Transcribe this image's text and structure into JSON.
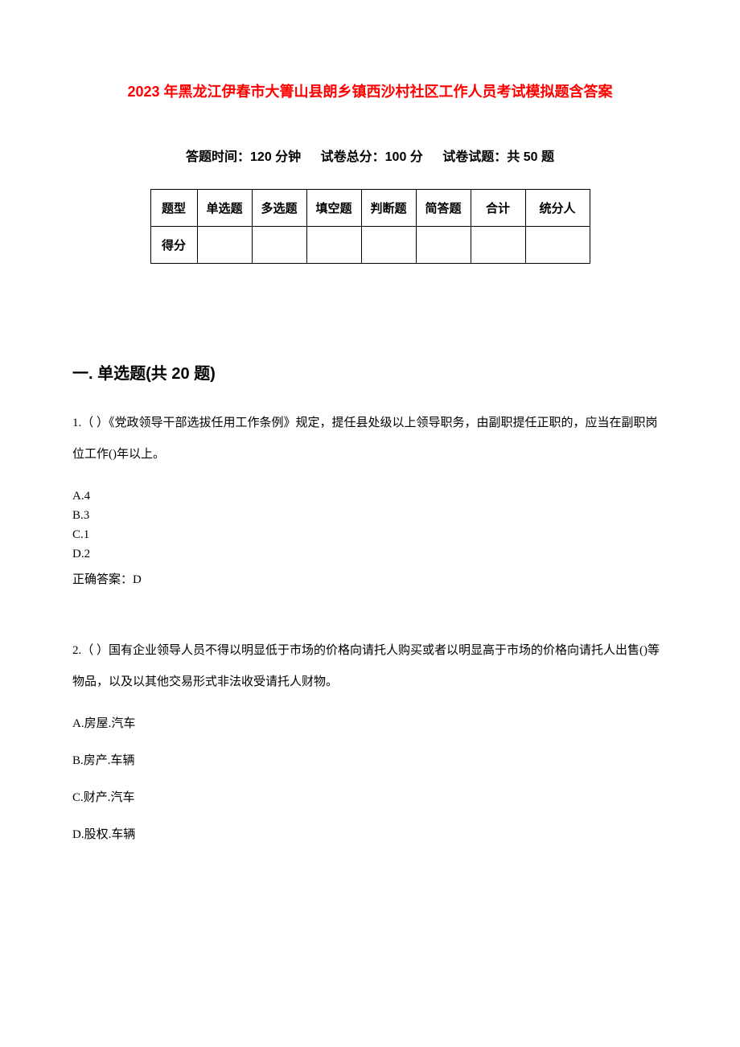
{
  "title": "2023 年黑龙江伊春市大箐山县朗乡镇西沙村社区工作人员考试模拟题含答案",
  "exam_info": {
    "time_label": "答题时间：120 分钟",
    "total_score_label": "试卷总分：100 分",
    "question_count_label": "试卷试题：共 50 题"
  },
  "score_table": {
    "row1": {
      "label": "题型",
      "cols": [
        "单选题",
        "多选题",
        "填空题",
        "判断题",
        "简答题"
      ],
      "total": "合计",
      "scorer": "统分人"
    },
    "row2": {
      "label": "得分",
      "cols": [
        "",
        "",
        "",
        "",
        ""
      ],
      "total": "",
      "scorer": ""
    }
  },
  "section1": {
    "heading": "一. 单选题(共 20 题)"
  },
  "q1": {
    "text": "1.（ ）《党政领导干部选拔任用工作条例》规定，提任县处级以上领导职务，由副职提任正职的，应当在副职岗位工作()年以上。",
    "opt_a": "A.4",
    "opt_b": "B.3",
    "opt_c": "C.1",
    "opt_d": "D.2",
    "answer": "正确答案：D"
  },
  "q2": {
    "text": "2.（ ）国有企业领导人员不得以明显低于市场的价格向请托人购买或者以明显高于市场的价格向请托人出售()等物品，以及以其他交易形式非法收受请托人财物。",
    "opt_a": "A.房屋.汽车",
    "opt_b": "B.房产.车辆",
    "opt_c": "C.财产.汽车",
    "opt_d": "D.股权.车辆"
  },
  "colors": {
    "title_color": "#ff0000",
    "text_color": "#000000",
    "background": "#ffffff",
    "border_color": "#000000"
  }
}
